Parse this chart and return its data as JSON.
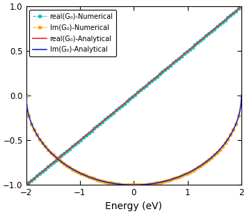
{
  "title": "",
  "xlabel": "Energy (eV)",
  "ylabel": "",
  "xlim": [
    -2,
    2
  ],
  "ylim": [
    -1,
    1
  ],
  "xticks": [
    -2,
    -1,
    0,
    1,
    2
  ],
  "yticks": [
    -1,
    -0.5,
    0,
    0.5,
    1
  ],
  "ytick_labels": [
    "-1",
    "-0.5",
    "0",
    "0.5",
    "1"
  ],
  "legend_entries": [
    "real(G₀)-Numerical",
    "Im(G₀)-Numerical",
    "real(G₀)-Analytical",
    "Im(G₀)-Analytical"
  ],
  "colors_numerical": [
    "#00C8C8",
    "#FFA500"
  ],
  "colors_analytical": [
    "#FF2020",
    "#2020CC"
  ],
  "marker_numerical": "o",
  "marker_size": 3.5,
  "n_points_numerical": 80,
  "n_points_analytical": 1000,
  "figsize": [
    3.55,
    3.07
  ],
  "dpi": 100,
  "background_color": "#ffffff",
  "legend_fontsize": 7.0,
  "xlabel_fontsize": 10,
  "tick_labelsize": 8.5
}
